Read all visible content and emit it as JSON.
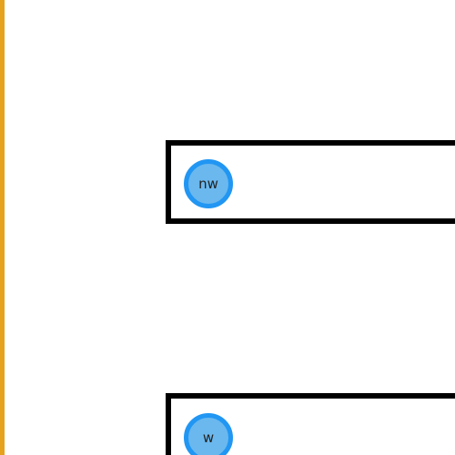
{
  "colors": {
    "left_border": "#e6a11d",
    "box_border": "#000000",
    "handle_fill": "#6ab8ee",
    "handle_ring": "#2196f3"
  },
  "anchors": [
    {
      "label": "nw"
    },
    {
      "label": "w"
    }
  ]
}
